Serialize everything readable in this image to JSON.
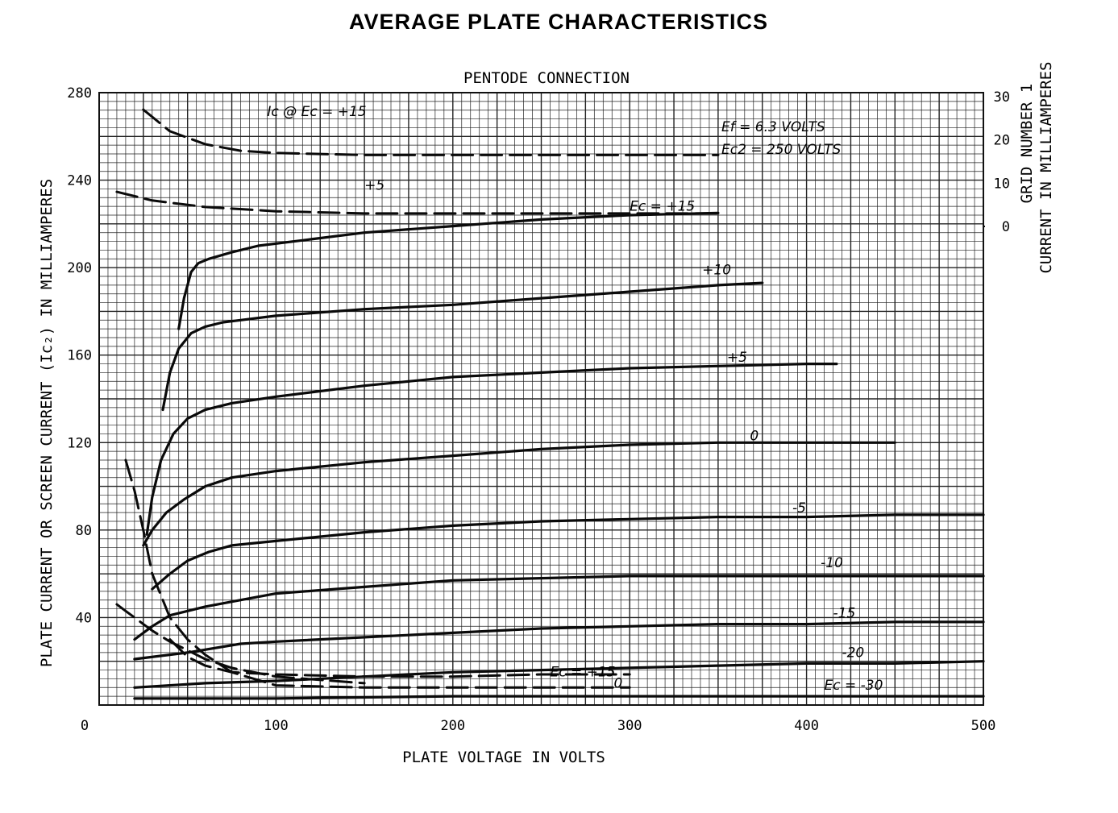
{
  "chart_data": {
    "type": "line",
    "title": "AVERAGE PLATE CHARACTERISTICS",
    "subtitle": "PENTODE CONNECTION",
    "xlabel": "PLATE VOLTAGE IN VOLTS",
    "ylabel": "PLATE CURRENT OR SCREEN CURRENT (Ic₂) IN MILLIAMPERES",
    "y2label": [
      "GRID NUMBER 1",
      "CURRENT IN MILLIAMPERES"
    ],
    "xlim": [
      0,
      500
    ],
    "ylim": [
      0,
      280
    ],
    "y2lim": [
      0,
      30
    ],
    "x_ticks": [
      "0",
      "100",
      "200",
      "300",
      "400",
      "500"
    ],
    "x_tick_values": [
      0,
      100,
      200,
      300,
      400,
      500
    ],
    "y_ticks": [
      "280",
      "240",
      "200",
      "160",
      "120",
      "80",
      "40"
    ],
    "y_tick_values": [
      280,
      240,
      200,
      160,
      120,
      80,
      40
    ],
    "y2_ticks": [
      "30",
      "20",
      "10",
      "0"
    ],
    "y2_tick_values": [
      30,
      20,
      10,
      0
    ],
    "grid": true,
    "annotations": [
      "Ef = 6.3 VOLTS",
      "Ec2 = 250 VOLTS"
    ],
    "series": [
      {
        "name": "Ec = +15",
        "style": "solid",
        "label": "Ec = +15",
        "label_at": [
          300,
          226
        ],
        "x": [
          45,
          48,
          52,
          56,
          62,
          75,
          90,
          120,
          150,
          200,
          250,
          300,
          350
        ],
        "y": [
          172,
          186,
          198,
          202,
          204,
          207,
          210,
          213,
          216,
          219,
          222,
          224,
          225
        ]
      },
      {
        "name": "Ec = +10",
        "style": "solid",
        "label": "+10",
        "label_at": [
          341,
          197
        ],
        "x": [
          36,
          40,
          45,
          52,
          60,
          70,
          80,
          100,
          150,
          200,
          250,
          300,
          350,
          375
        ],
        "y": [
          135,
          152,
          163,
          170,
          173,
          175,
          176,
          178,
          181,
          183,
          186,
          189,
          192,
          193
        ]
      },
      {
        "name": "Ec = +5",
        "style": "solid",
        "label": "+5",
        "label_at": [
          355,
          157
        ],
        "x": [
          27,
          30,
          35,
          42,
          50,
          60,
          75,
          100,
          150,
          200,
          250,
          300,
          350,
          400,
          417
        ],
        "y": [
          78,
          95,
          112,
          124,
          131,
          135,
          138,
          141,
          146,
          150,
          152,
          154,
          155,
          156,
          156
        ]
      },
      {
        "name": "Ec = 0",
        "style": "solid",
        "label": "0",
        "label_at": [
          368,
          121
        ],
        "x": [
          25,
          30,
          38,
          48,
          60,
          75,
          100,
          150,
          200,
          250,
          300,
          350,
          400,
          450
        ],
        "y": [
          73,
          80,
          88,
          94,
          100,
          104,
          107,
          111,
          114,
          117,
          119,
          120,
          120,
          120
        ]
      },
      {
        "name": "Ec = -5",
        "style": "solid",
        "label": "-5",
        "label_at": [
          392,
          88
        ],
        "x": [
          30,
          40,
          50,
          62,
          75,
          100,
          150,
          200,
          250,
          300,
          350,
          400,
          450,
          500
        ],
        "y": [
          53,
          60,
          66,
          70,
          73,
          75,
          79,
          82,
          84,
          85,
          86,
          86,
          87,
          87
        ]
      },
      {
        "name": "Ec = -10",
        "style": "solid",
        "label": "-10",
        "label_at": [
          408,
          63
        ],
        "x": [
          20,
          30,
          40,
          50,
          60,
          80,
          100,
          150,
          200,
          250,
          300,
          350,
          400,
          450,
          500
        ],
        "y": [
          30,
          36,
          41,
          43,
          45,
          48,
          51,
          54,
          57,
          58,
          59,
          59,
          59,
          59,
          59
        ]
      },
      {
        "name": "Ec = -15",
        "style": "solid",
        "label": "-15",
        "label_at": [
          415,
          40
        ],
        "x": [
          20,
          50,
          80,
          100,
          150,
          200,
          250,
          300,
          350,
          400,
          450,
          500
        ],
        "y": [
          21,
          24,
          28,
          29,
          31,
          33,
          35,
          36,
          37,
          37,
          38,
          38
        ]
      },
      {
        "name": "Ec = -20",
        "style": "solid",
        "label": "-20",
        "label_at": [
          420,
          22
        ],
        "x": [
          20,
          60,
          100,
          150,
          200,
          250,
          300,
          350,
          400,
          450,
          500
        ],
        "y": [
          8,
          10,
          11,
          13,
          15,
          16,
          17,
          18,
          19,
          19,
          20
        ]
      },
      {
        "name": "Ec = -30",
        "style": "solid",
        "label": "Ec = -30",
        "label_at": [
          410,
          7
        ],
        "x": [
          20,
          100,
          200,
          300,
          400,
          500
        ],
        "y": [
          3,
          3,
          4,
          4,
          4,
          4
        ]
      },
      {
        "name": "Ic2 @ Ec = +15",
        "style": "dashed",
        "label": "Ec = +15",
        "label_at": [
          255,
          13
        ],
        "x": [
          40,
          50,
          60,
          75,
          100,
          150,
          200,
          250,
          300
        ],
        "y": [
          30,
          22,
          18,
          15,
          14,
          13,
          13,
          14,
          14
        ]
      },
      {
        "name": "Ic2 @ Ec = 0",
        "style": "dashed",
        "label": "0",
        "label_at": [
          291,
          8
        ],
        "x": [
          15,
          20,
          25,
          30,
          40,
          50,
          60,
          75,
          100,
          150,
          200,
          250,
          300
        ],
        "y": [
          112,
          98,
          80,
          60,
          40,
          30,
          23,
          15,
          9,
          8,
          8,
          8,
          8
        ]
      },
      {
        "name": "Ic2 @ Ec = -30",
        "style": "dashed",
        "label": "",
        "label_at": [
          0,
          0
        ],
        "x": [
          10,
          15,
          20,
          25,
          30,
          40,
          50,
          60,
          75,
          100,
          150
        ],
        "y": [
          46,
          43,
          40,
          37,
          34,
          29,
          25,
          21,
          17,
          13,
          10
        ]
      },
      {
        "name": "Ic @ Ec = +15",
        "style": "dashed",
        "axis": "y2",
        "label": "Ic @ Ec = +15",
        "label_at": [
          95,
          25.5
        ],
        "x": [
          25,
          40,
          60,
          80,
          100,
          150,
          200,
          250,
          300,
          350
        ],
        "y": [
          27,
          22,
          19,
          17.5,
          17,
          16.5,
          16.5,
          16.5,
          16.5,
          16.5
        ]
      },
      {
        "name": "Ic @ Ec = +5",
        "style": "dashed",
        "axis": "y2",
        "label": "+5",
        "label_at": [
          150,
          8.5
        ],
        "x": [
          10,
          30,
          60,
          100,
          150,
          200,
          250,
          300,
          350
        ],
        "y": [
          8,
          6,
          4.5,
          3.5,
          3,
          3,
          3,
          3,
          3
        ]
      }
    ]
  }
}
